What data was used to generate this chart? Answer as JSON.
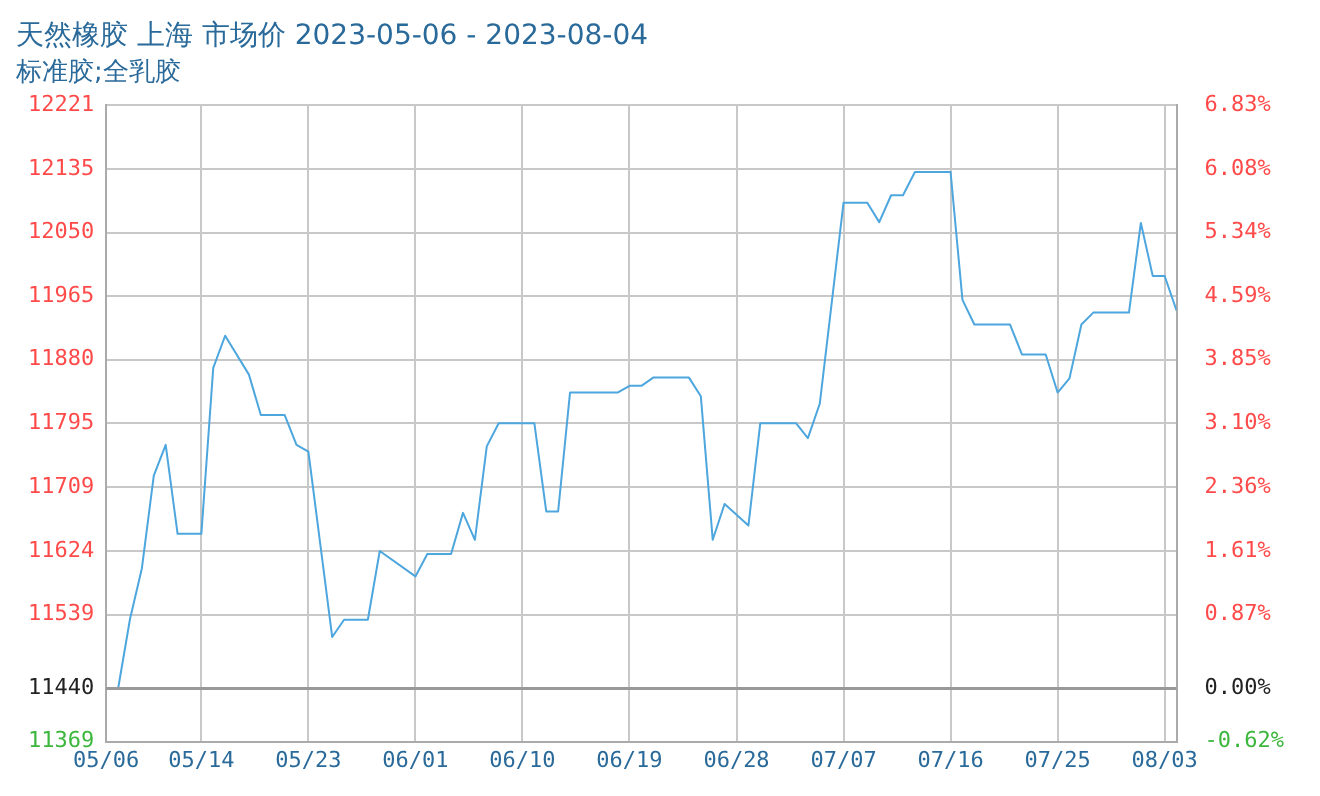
{
  "chart_data": {
    "type": "line",
    "title": "天然橡胶 上海 市场价 2023-05-06 - 2023-08-04",
    "subtitle": "标准胶;全乳胶",
    "x": [
      "2023-05-06",
      "2023-05-07",
      "2023-05-08",
      "2023-05-09",
      "2023-05-10",
      "2023-05-11",
      "2023-05-12",
      "2023-05-14",
      "2023-05-15",
      "2023-05-16",
      "2023-05-18",
      "2023-05-19",
      "2023-05-21",
      "2023-05-22",
      "2023-05-23",
      "2023-05-25",
      "2023-05-26",
      "2023-05-28",
      "2023-05-29",
      "2023-06-01",
      "2023-06-02",
      "2023-06-04",
      "2023-06-05",
      "2023-06-06",
      "2023-06-07",
      "2023-06-08",
      "2023-06-11",
      "2023-06-12",
      "2023-06-13",
      "2023-06-14",
      "2023-06-18",
      "2023-06-19",
      "2023-06-20",
      "2023-06-21",
      "2023-06-24",
      "2023-06-25",
      "2023-06-26",
      "2023-06-27",
      "2023-06-29",
      "2023-06-30",
      "2023-07-03",
      "2023-07-04",
      "2023-07-05",
      "2023-07-07",
      "2023-07-09",
      "2023-07-10",
      "2023-07-11",
      "2023-07-12",
      "2023-07-13",
      "2023-07-16",
      "2023-07-17",
      "2023-07-18",
      "2023-07-21",
      "2023-07-22",
      "2023-07-24",
      "2023-07-25",
      "2023-07-26",
      "2023-07-27",
      "2023-07-28",
      "2023-07-31",
      "2023-08-01",
      "2023-08-02",
      "2023-08-03",
      "2023-08-04"
    ],
    "series": [
      {
        "color": "#4da6dd",
        "values": [
          11440,
          11440,
          11533,
          11601,
          11725,
          11766,
          11647,
          11647,
          11869,
          11912,
          11860,
          11806,
          11806,
          11766,
          11757,
          11509,
          11532,
          11532,
          11624,
          11590,
          11620,
          11620,
          11675,
          11639,
          11764,
          11795,
          11795,
          11677,
          11677,
          11836,
          11836,
          11845,
          11845,
          11856,
          11856,
          11831,
          11639,
          11687,
          11658,
          11795,
          11795,
          11775,
          11821,
          12090,
          12090,
          12064,
          12100,
          12100,
          12131,
          12131,
          11960,
          11927,
          11927,
          11887,
          11887,
          11836,
          11855,
          11927,
          11943,
          11943,
          12063,
          11992,
          11992,
          11946
        ]
      }
    ],
    "xlim": [
      "2023-05-06",
      "2023-08-04"
    ],
    "xticks": [
      {
        "value": "2023-05-06",
        "label": "05/06"
      },
      {
        "value": "2023-05-14",
        "label": "05/14"
      },
      {
        "value": "2023-05-23",
        "label": "05/23"
      },
      {
        "value": "2023-06-01",
        "label": "06/01"
      },
      {
        "value": "2023-06-10",
        "label": "06/10"
      },
      {
        "value": "2023-06-19",
        "label": "06/19"
      },
      {
        "value": "2023-06-28",
        "label": "06/28"
      },
      {
        "value": "2023-07-07",
        "label": "07/07"
      },
      {
        "value": "2023-07-16",
        "label": "07/16"
      },
      {
        "value": "2023-07-25",
        "label": "07/25"
      },
      {
        "value": "2023-08-03",
        "label": "08/03"
      }
    ],
    "ylim": [
      11369,
      12221
    ],
    "yticks": [
      11369,
      11440,
      11539,
      11624,
      11709,
      11795,
      11880,
      11965,
      12050,
      12135,
      12221
    ],
    "y2lim": [
      -0.62,
      6.83
    ],
    "y2ticks": [
      {
        "value": -0.62,
        "label": "-0.62%"
      },
      {
        "value": 0,
        "label": "0.00%"
      },
      {
        "value": 0.87,
        "label": "0.87%"
      },
      {
        "value": 1.61,
        "label": "1.61%"
      },
      {
        "value": 2.36,
        "label": "2.36%"
      },
      {
        "value": 3.1,
        "label": "3.10%"
      },
      {
        "value": 3.85,
        "label": "3.85%"
      },
      {
        "value": 4.59,
        "label": "4.59%"
      },
      {
        "value": 5.34,
        "label": "5.34%"
      },
      {
        "value": 6.08,
        "label": "6.08%"
      },
      {
        "value": 6.83,
        "label": "6.83%"
      }
    ],
    "ref_lines": [
      {
        "axis": "y",
        "value": 11440,
        "color": "#999999"
      }
    ],
    "grid": true,
    "marker": "none",
    "line_style": "solid",
    "legend": false
  }
}
